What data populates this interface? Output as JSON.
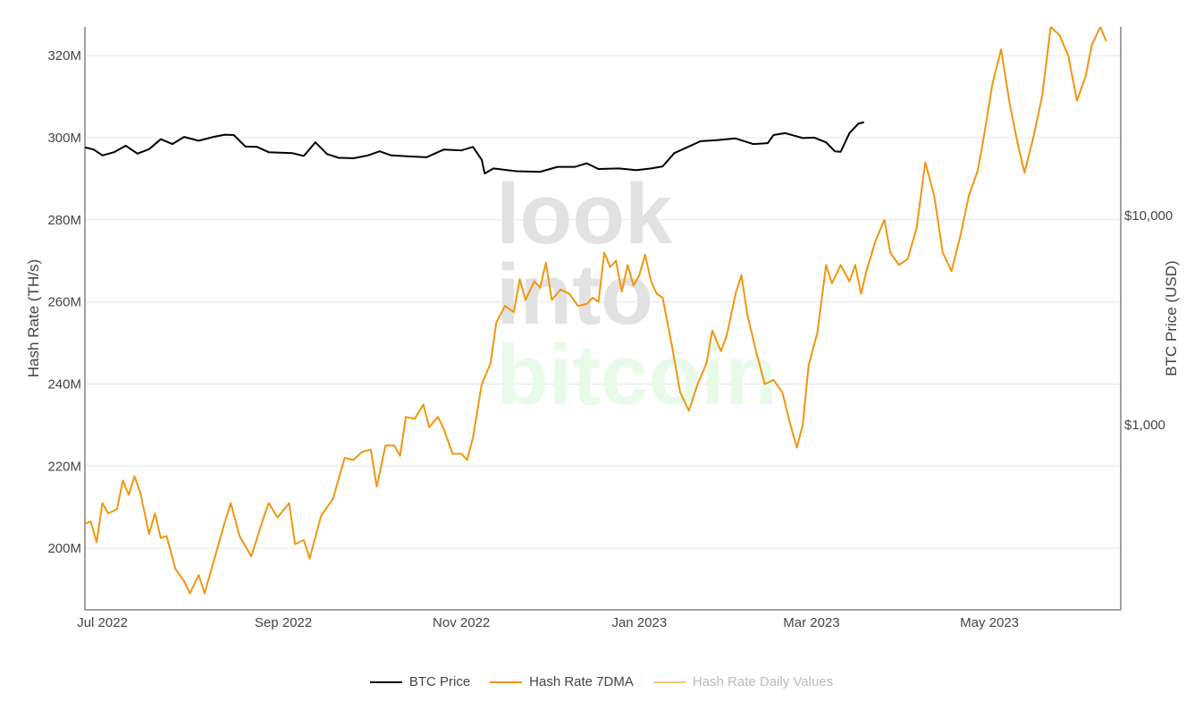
{
  "colors": {
    "btc_price": "#000000",
    "hash_rate_7dma": "#f0960f",
    "hash_rate_daily": "#f6c67e",
    "gridline": "#e6e6e6",
    "watermark_look_into": "#e2e2e2",
    "watermark_bitcoin": "#e8fbe8"
  },
  "watermark": {
    "line1": "look",
    "line2": "into",
    "line3": "bitcoin"
  },
  "chart_data": {
    "type": "line",
    "title": "",
    "xlabel": "",
    "ylabel": "Hash Rate (TH/s)",
    "y2label": "BTC Price (USD)",
    "x_tick_labels": [
      "Jul 2022",
      "Sep 2022",
      "Nov 2022",
      "Jan 2023",
      "Mar 2023",
      "May 2023"
    ],
    "x_tick_dates": [
      "2022-07-01",
      "2022-09-01",
      "2022-11-01",
      "2023-01-01",
      "2023-03-01",
      "2023-05-01"
    ],
    "xlim": [
      "2022-06-25",
      "2023-06-15"
    ],
    "y_tick_labels": [
      "200M",
      "220M",
      "240M",
      "260M",
      "280M",
      "300M",
      "320M"
    ],
    "y_tick_values": [
      200000000,
      220000000,
      240000000,
      260000000,
      280000000,
      300000000,
      320000000
    ],
    "ylim": [
      185000000,
      327000000
    ],
    "y2_scale": "log",
    "y2_tick_labels": [
      "$1,000",
      "$10,000"
    ],
    "y2_tick_values": [
      1000,
      10000
    ],
    "y2lim": [
      130,
      80000
    ],
    "grid": true,
    "legend_position": "bottom",
    "series": [
      {
        "name": "BTC Price",
        "axis": "y2",
        "points": [
          [
            "2022-06-25",
            21200
          ],
          [
            "2022-06-28",
            20700
          ],
          [
            "2022-07-01",
            19400
          ],
          [
            "2022-07-05",
            20100
          ],
          [
            "2022-07-09",
            21600
          ],
          [
            "2022-07-13",
            19800
          ],
          [
            "2022-07-17",
            20800
          ],
          [
            "2022-07-21",
            23200
          ],
          [
            "2022-07-25",
            22000
          ],
          [
            "2022-07-29",
            23800
          ],
          [
            "2022-08-03",
            22800
          ],
          [
            "2022-08-08",
            23800
          ],
          [
            "2022-08-12",
            24400
          ],
          [
            "2022-08-15",
            24300
          ],
          [
            "2022-08-19",
            21400
          ],
          [
            "2022-08-23",
            21300
          ],
          [
            "2022-08-27",
            20100
          ],
          [
            "2022-08-31",
            20000
          ],
          [
            "2022-09-04",
            19900
          ],
          [
            "2022-09-08",
            19300
          ],
          [
            "2022-09-12",
            22400
          ],
          [
            "2022-09-16",
            19700
          ],
          [
            "2022-09-20",
            18900
          ],
          [
            "2022-09-25",
            18800
          ],
          [
            "2022-09-30",
            19400
          ],
          [
            "2022-10-04",
            20300
          ],
          [
            "2022-10-08",
            19400
          ],
          [
            "2022-10-14",
            19200
          ],
          [
            "2022-10-20",
            19000
          ],
          [
            "2022-10-26",
            20700
          ],
          [
            "2022-11-01",
            20500
          ],
          [
            "2022-11-05",
            21300
          ],
          [
            "2022-11-08",
            18500
          ],
          [
            "2022-11-09",
            15900
          ],
          [
            "2022-11-12",
            16800
          ],
          [
            "2022-11-20",
            16300
          ],
          [
            "2022-11-28",
            16200
          ],
          [
            "2022-12-04",
            17100
          ],
          [
            "2022-12-10",
            17100
          ],
          [
            "2022-12-14",
            17800
          ],
          [
            "2022-12-18",
            16700
          ],
          [
            "2022-12-25",
            16800
          ],
          [
            "2022-12-31",
            16500
          ],
          [
            "2023-01-05",
            16800
          ],
          [
            "2023-01-09",
            17200
          ],
          [
            "2023-01-13",
            19900
          ],
          [
            "2023-01-17",
            21100
          ],
          [
            "2023-01-22",
            22700
          ],
          [
            "2023-01-28",
            23000
          ],
          [
            "2023-02-03",
            23400
          ],
          [
            "2023-02-09",
            22000
          ],
          [
            "2023-02-14",
            22200
          ],
          [
            "2023-02-16",
            24300
          ],
          [
            "2023-02-20",
            24800
          ],
          [
            "2023-02-26",
            23500
          ],
          [
            "2023-03-02",
            23600
          ],
          [
            "2023-03-06",
            22400
          ],
          [
            "2023-03-09",
            20300
          ],
          [
            "2023-03-11",
            20200
          ],
          [
            "2023-03-14",
            24800
          ],
          [
            "2023-03-17",
            27500
          ],
          [
            "2023-03-19",
            28000
          ]
        ]
      },
      {
        "name": "Hash Rate 7DMA",
        "axis": "y",
        "points": [
          [
            "2022-06-25",
            206000000
          ],
          [
            "2022-06-27",
            206500000
          ],
          [
            "2022-06-29",
            201500000
          ],
          [
            "2022-07-01",
            211000000
          ],
          [
            "2022-07-03",
            208500000
          ],
          [
            "2022-07-06",
            209500000
          ],
          [
            "2022-07-08",
            216500000
          ],
          [
            "2022-07-10",
            213000000
          ],
          [
            "2022-07-12",
            217500000
          ],
          [
            "2022-07-14",
            213500000
          ],
          [
            "2022-07-17",
            203500000
          ],
          [
            "2022-07-19",
            208500000
          ],
          [
            "2022-07-21",
            202500000
          ],
          [
            "2022-07-23",
            203000000
          ],
          [
            "2022-07-26",
            195000000
          ],
          [
            "2022-07-29",
            192000000
          ],
          [
            "2022-07-31",
            189000000
          ],
          [
            "2022-08-03",
            193500000
          ],
          [
            "2022-08-05",
            189000000
          ],
          [
            "2022-08-09",
            199000000
          ],
          [
            "2022-08-12",
            206500000
          ],
          [
            "2022-08-14",
            211000000
          ],
          [
            "2022-08-17",
            203000000
          ],
          [
            "2022-08-21",
            198000000
          ],
          [
            "2022-08-25",
            207000000
          ],
          [
            "2022-08-27",
            211000000
          ],
          [
            "2022-08-30",
            207500000
          ],
          [
            "2022-09-03",
            211000000
          ],
          [
            "2022-09-05",
            201000000
          ],
          [
            "2022-09-08",
            202000000
          ],
          [
            "2022-09-10",
            197500000
          ],
          [
            "2022-09-14",
            208000000
          ],
          [
            "2022-09-18",
            212000000
          ],
          [
            "2022-09-22",
            222000000
          ],
          [
            "2022-09-25",
            221500000
          ],
          [
            "2022-09-28",
            223500000
          ],
          [
            "2022-10-01",
            224000000
          ],
          [
            "2022-10-03",
            215000000
          ],
          [
            "2022-10-06",
            225000000
          ],
          [
            "2022-10-09",
            225000000
          ],
          [
            "2022-10-11",
            222500000
          ],
          [
            "2022-10-13",
            232000000
          ],
          [
            "2022-10-16",
            231500000
          ],
          [
            "2022-10-19",
            235000000
          ],
          [
            "2022-10-21",
            229500000
          ],
          [
            "2022-10-24",
            232000000
          ],
          [
            "2022-10-26",
            229000000
          ],
          [
            "2022-10-29",
            223000000
          ],
          [
            "2022-11-01",
            223000000
          ],
          [
            "2022-11-03",
            221500000
          ],
          [
            "2022-11-05",
            227000000
          ],
          [
            "2022-11-08",
            240000000
          ],
          [
            "2022-11-11",
            245000000
          ],
          [
            "2022-11-13",
            255000000
          ],
          [
            "2022-11-16",
            259000000
          ],
          [
            "2022-11-19",
            257500000
          ],
          [
            "2022-11-21",
            265500000
          ],
          [
            "2022-11-23",
            260500000
          ],
          [
            "2022-11-26",
            265000000
          ],
          [
            "2022-11-28",
            263500000
          ],
          [
            "2022-11-30",
            269500000
          ],
          [
            "2022-12-02",
            260500000
          ],
          [
            "2022-12-05",
            263000000
          ],
          [
            "2022-12-08",
            262000000
          ],
          [
            "2022-12-11",
            259000000
          ],
          [
            "2022-12-14",
            259500000
          ],
          [
            "2022-12-16",
            261000000
          ],
          [
            "2022-12-18",
            260000000
          ],
          [
            "2022-12-20",
            272000000
          ],
          [
            "2022-12-22",
            268500000
          ],
          [
            "2022-12-24",
            270000000
          ],
          [
            "2022-12-26",
            262500000
          ],
          [
            "2022-12-28",
            269000000
          ],
          [
            "2022-12-30",
            264000000
          ],
          [
            "2023-01-01",
            266500000
          ],
          [
            "2023-01-03",
            271500000
          ],
          [
            "2023-01-05",
            265000000
          ],
          [
            "2023-01-07",
            262000000
          ],
          [
            "2023-01-09",
            261000000
          ],
          [
            "2023-01-12",
            250000000
          ],
          [
            "2023-01-15",
            238000000
          ],
          [
            "2023-01-18",
            233500000
          ],
          [
            "2023-01-21",
            240000000
          ],
          [
            "2023-01-24",
            245000000
          ],
          [
            "2023-01-26",
            253000000
          ],
          [
            "2023-01-29",
            248000000
          ],
          [
            "2023-01-31",
            252000000
          ],
          [
            "2023-02-03",
            262000000
          ],
          [
            "2023-02-05",
            266500000
          ],
          [
            "2023-02-07",
            257000000
          ],
          [
            "2023-02-10",
            248000000
          ],
          [
            "2023-02-13",
            240000000
          ],
          [
            "2023-02-16",
            241000000
          ],
          [
            "2023-02-19",
            238000000
          ],
          [
            "2023-02-22",
            229500000
          ],
          [
            "2023-02-24",
            224500000
          ],
          [
            "2023-02-26",
            230000000
          ],
          [
            "2023-02-28",
            244500000
          ],
          [
            "2023-03-03",
            252500000
          ],
          [
            "2023-03-06",
            269000000
          ],
          [
            "2023-03-08",
            264500000
          ],
          [
            "2023-03-11",
            269000000
          ],
          [
            "2023-03-14",
            265000000
          ],
          [
            "2023-03-16",
            269000000
          ],
          [
            "2023-03-18",
            262000000
          ],
          [
            "2023-03-20",
            268000000
          ],
          [
            "2023-03-23",
            275000000
          ],
          [
            "2023-03-26",
            280000000
          ],
          [
            "2023-03-28",
            272000000
          ],
          [
            "2023-03-31",
            269000000
          ],
          [
            "2023-04-03",
            270500000
          ],
          [
            "2023-04-06",
            278000000
          ],
          [
            "2023-04-09",
            294000000
          ],
          [
            "2023-04-12",
            286000000
          ],
          [
            "2023-04-15",
            272000000
          ],
          [
            "2023-04-18",
            267500000
          ],
          [
            "2023-04-21",
            276000000
          ],
          [
            "2023-04-24",
            286000000
          ],
          [
            "2023-04-27",
            292000000
          ],
          [
            "2023-04-29",
            300000000
          ],
          [
            "2023-05-02",
            313000000
          ],
          [
            "2023-05-05",
            321500000
          ],
          [
            "2023-05-08",
            308000000
          ],
          [
            "2023-05-11",
            297500000
          ],
          [
            "2023-05-13",
            291500000
          ],
          [
            "2023-05-16",
            300000000
          ],
          [
            "2023-05-19",
            310000000
          ],
          [
            "2023-05-22",
            327000000
          ],
          [
            "2023-05-25",
            325000000
          ],
          [
            "2023-05-28",
            320000000
          ],
          [
            "2023-05-31",
            309000000
          ],
          [
            "2023-06-03",
            315000000
          ],
          [
            "2023-06-05",
            322500000
          ],
          [
            "2023-06-08",
            327000000
          ],
          [
            "2023-06-10",
            323500000
          ]
        ]
      },
      {
        "name": "Hash Rate Daily Values",
        "axis": "y",
        "hidden": true,
        "points": []
      }
    ]
  },
  "legend": {
    "items": [
      {
        "label": "BTC Price",
        "color": "#000000",
        "hidden": false
      },
      {
        "label": "Hash Rate 7DMA",
        "color": "#f0960f",
        "hidden": false
      },
      {
        "label": "Hash Rate Daily Values",
        "color": "#f6c67e",
        "hidden": true
      }
    ]
  }
}
